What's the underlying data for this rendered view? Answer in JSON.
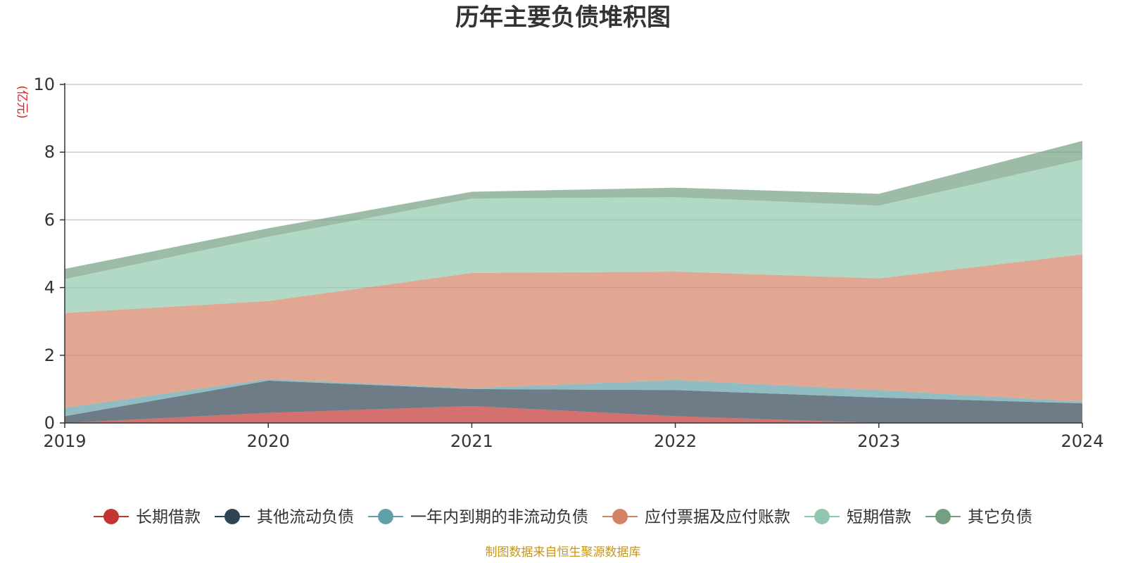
{
  "chart_data": {
    "type": "area",
    "stacked": true,
    "title": "历年主要负债堆积图",
    "ylabel": "(亿元)",
    "xlabel": "",
    "x": [
      "2019",
      "2020",
      "2021",
      "2022",
      "2023",
      "2024"
    ],
    "ylim": [
      0,
      10
    ],
    "yticks": [
      "0",
      "2",
      "4",
      "6",
      "8",
      "10"
    ],
    "grid": true,
    "legend_position": "bottom",
    "series": [
      {
        "name": "长期借款",
        "color": "#c23531",
        "values": [
          0.0,
          0.3,
          0.5,
          0.2,
          0.0,
          0.0
        ]
      },
      {
        "name": "其他流动负债",
        "color": "#2f4554",
        "values": [
          0.2,
          0.95,
          0.5,
          0.77,
          0.75,
          0.58
        ]
      },
      {
        "name": "一年内到期的非流动负债",
        "color": "#61a0a8",
        "values": [
          0.25,
          0.05,
          0.03,
          0.3,
          0.22,
          0.05
        ]
      },
      {
        "name": "应付票据及应付账款",
        "color": "#d48265",
        "values": [
          2.8,
          2.3,
          3.4,
          3.2,
          3.3,
          4.35
        ]
      },
      {
        "name": "短期借款",
        "color": "#91c7ae",
        "values": [
          1.0,
          1.9,
          2.2,
          2.2,
          2.15,
          2.8
        ]
      },
      {
        "name": "其它负债",
        "color": "#749f83",
        "values": [
          0.3,
          0.25,
          0.2,
          0.28,
          0.35,
          0.55
        ]
      }
    ]
  },
  "source_note": "制图数据来自恒生聚源数据库"
}
